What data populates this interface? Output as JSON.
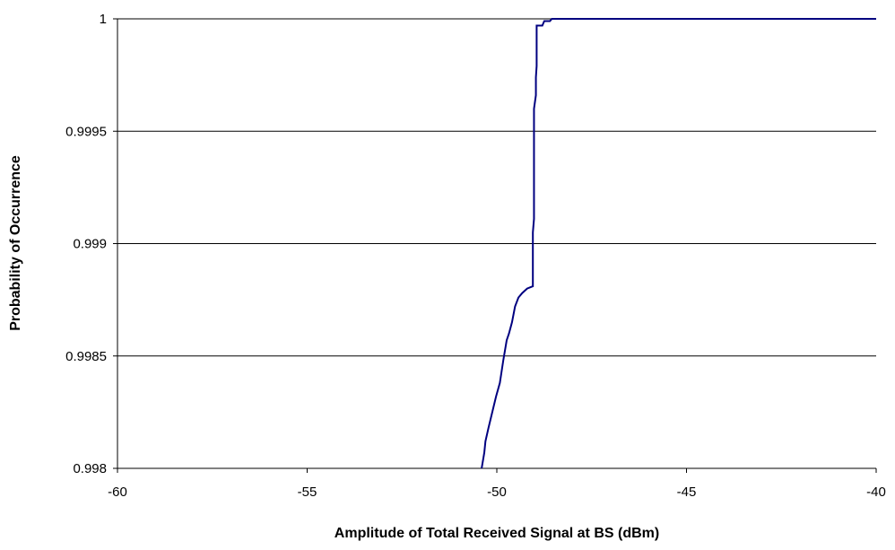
{
  "chart_data": {
    "type": "line",
    "title": "",
    "xlabel": "Amplitude of Total Received Signal at BS (dBm)",
    "ylabel": "Probability of Occurrence",
    "xlim": [
      -60,
      -40
    ],
    "ylim": [
      0.998,
      1.0
    ],
    "x_ticks": [
      {
        "value": -60,
        "label": "-60"
      },
      {
        "value": -55,
        "label": "-55"
      },
      {
        "value": -50,
        "label": "-50"
      },
      {
        "value": -45,
        "label": "-45"
      },
      {
        "value": -40,
        "label": "-40"
      }
    ],
    "y_ticks": [
      {
        "value": 0.998,
        "label": "0.998"
      },
      {
        "value": 0.9985,
        "label": "0.9985"
      },
      {
        "value": 0.999,
        "label": "0.999"
      },
      {
        "value": 0.9995,
        "label": "0.9995"
      },
      {
        "value": 1.0,
        "label": "1"
      }
    ],
    "grid": "horizontal",
    "legend": "none",
    "colors": {
      "line": "#000080",
      "grid": "#000000",
      "axis": "#000000"
    },
    "series": [
      {
        "x": [
          -50.4,
          -50.33,
          -50.3,
          -50.22,
          -50.12,
          -50.02,
          -49.92,
          -49.83,
          -49.74,
          -49.68,
          -49.6,
          -49.52,
          -49.43,
          -49.33,
          -49.2,
          -49.05,
          -49.05,
          -49.02,
          -49.02,
          -48.97,
          -48.97,
          -48.95,
          -48.95,
          -48.95,
          -48.8,
          -48.75,
          -48.6,
          -48.55,
          -48.45,
          -40.0
        ],
        "y": [
          0.998,
          0.99807,
          0.99812,
          0.99818,
          0.99825,
          0.99832,
          0.99838,
          0.99848,
          0.99857,
          0.9986,
          0.99865,
          0.99872,
          0.99876,
          0.99878,
          0.9988,
          0.99881,
          0.99905,
          0.99911,
          0.9996,
          0.99966,
          0.99974,
          0.99979,
          0.99989,
          0.99997,
          0.99997,
          0.99999,
          0.99999,
          1.0,
          1.0,
          1.0
        ]
      }
    ]
  }
}
